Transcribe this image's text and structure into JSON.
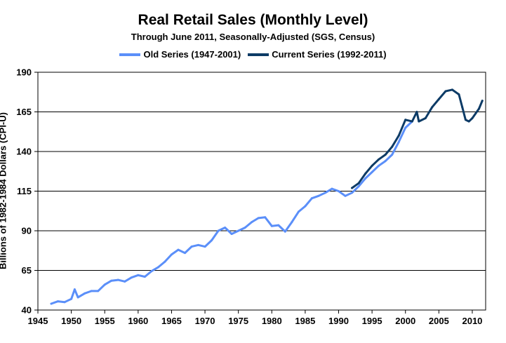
{
  "chart_data": {
    "type": "line",
    "title": "Real Retail Sales (Monthly Level)",
    "subtitle": "Through June 2011, Seasonally-Adjusted (SGS, Census)",
    "xlabel": "",
    "ylabel": "Billions of 1982-1984 Dollars (CPI-U)",
    "xlim": [
      1945,
      2012
    ],
    "ylim": [
      40,
      190
    ],
    "xticks": [
      1945,
      1950,
      1955,
      1960,
      1965,
      1970,
      1975,
      1980,
      1985,
      1990,
      1995,
      2000,
      2005,
      2010
    ],
    "yticks": [
      40,
      65,
      90,
      115,
      140,
      165,
      190
    ],
    "grid": "horizontal",
    "legend_position": "top",
    "series": [
      {
        "name": "Old Series (1947-2001)",
        "color": "#5b8ff9",
        "x": [
          1947.0,
          1948.0,
          1949.0,
          1950.0,
          1950.5,
          1951.0,
          1952.0,
          1953.0,
          1954.0,
          1955.0,
          1956.0,
          1957.0,
          1958.0,
          1959.0,
          1960.0,
          1961.0,
          1962.0,
          1963.0,
          1964.0,
          1965.0,
          1966.0,
          1967.0,
          1968.0,
          1969.0,
          1970.0,
          1971.0,
          1972.0,
          1973.0,
          1974.0,
          1975.0,
          1976.0,
          1977.0,
          1978.0,
          1979.0,
          1980.0,
          1981.0,
          1982.0,
          1983.0,
          1984.0,
          1985.0,
          1986.0,
          1987.0,
          1988.0,
          1989.0,
          1990.0,
          1991.0,
          1992.0,
          1993.0,
          1994.0,
          1995.0,
          1996.0,
          1997.0,
          1998.0,
          1999.0,
          2000.0,
          2001.0
        ],
        "values": [
          44.0,
          45.5,
          45.0,
          47.0,
          53.0,
          48.0,
          50.5,
          52.0,
          52.0,
          56.0,
          58.5,
          59.0,
          58.0,
          60.5,
          62.0,
          61.0,
          64.5,
          67.0,
          70.5,
          75.0,
          78.0,
          76.0,
          80.0,
          81.0,
          80.0,
          84.0,
          90.0,
          92.0,
          88.0,
          90.0,
          92.0,
          95.5,
          98.0,
          98.5,
          93.0,
          93.5,
          89.5,
          95.5,
          102.0,
          105.5,
          110.5,
          112.0,
          114.0,
          116.5,
          115.0,
          112.0,
          114.0,
          118.0,
          123.0,
          127.0,
          131.0,
          134.0,
          138.0,
          146.0,
          155.0,
          159.0
        ]
      },
      {
        "name": "Current Series (1992-2011)",
        "color": "#0d3b66",
        "x": [
          1992.0,
          1993.0,
          1994.0,
          1995.0,
          1996.0,
          1997.0,
          1998.0,
          1999.0,
          2000.0,
          2001.0,
          2001.7,
          2002.0,
          2003.0,
          2004.0,
          2005.0,
          2006.0,
          2007.0,
          2008.0,
          2008.5,
          2009.0,
          2009.5,
          2010.0,
          2011.0,
          2011.5
        ],
        "values": [
          117.0,
          120.0,
          126.0,
          131.0,
          135.0,
          138.0,
          143.0,
          150.0,
          160.0,
          159.0,
          165.0,
          159.0,
          161.0,
          168.0,
          173.0,
          178.0,
          179.0,
          176.0,
          168.0,
          160.0,
          159.0,
          161.0,
          167.0,
          172.0
        ]
      }
    ]
  }
}
